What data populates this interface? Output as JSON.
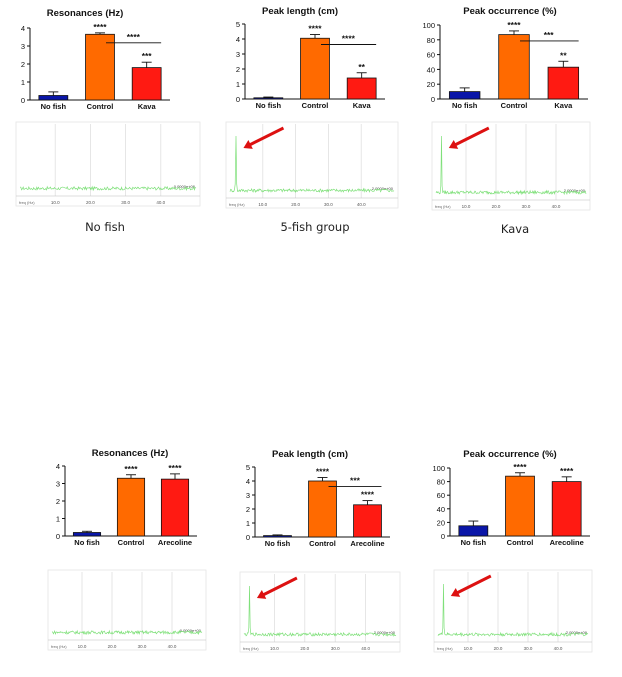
{
  "colors": {
    "nofish": "#0a16a8",
    "control": "#ff6a00",
    "treatment": "#ff1a12",
    "spectrum": "#7fe07a",
    "arrow": "#dd1111"
  },
  "chart_data": [
    {
      "type": "bar",
      "title": "Resonances (Hz)",
      "categories": [
        "No fish",
        "Control",
        "Kava"
      ],
      "values": [
        0.25,
        3.65,
        1.8
      ],
      "errors": [
        0.2,
        0.08,
        0.3
      ],
      "ylim": [
        0,
        4
      ],
      "yticks": [
        "0",
        "1",
        "2",
        "3",
        "4"
      ],
      "stars_on_bars": [
        "",
        "****",
        "***"
      ],
      "bracket": {
        "from": 1,
        "to": 2,
        "label": "****"
      }
    },
    {
      "type": "bar",
      "title": "Peak length (cm)",
      "categories": [
        "No fish",
        "Control",
        "Kava"
      ],
      "values": [
        0.08,
        4.05,
        1.4
      ],
      "errors": [
        0.05,
        0.25,
        0.35
      ],
      "ylim": [
        0,
        5
      ],
      "yticks": [
        "0",
        "1",
        "2",
        "3",
        "4",
        "5"
      ],
      "stars_on_bars": [
        "",
        "****",
        "**"
      ],
      "bracket": {
        "from": 1,
        "to": 2,
        "label": "****"
      }
    },
    {
      "type": "bar",
      "title": "Peak occurrence (%)",
      "categories": [
        "No fish",
        "Control",
        "Kava"
      ],
      "values": [
        10,
        87,
        43
      ],
      "errors": [
        5,
        5,
        8
      ],
      "ylim": [
        0,
        100
      ],
      "yticks": [
        "0",
        "20",
        "40",
        "60",
        "80",
        "100"
      ],
      "stars_on_bars": [
        "",
        "****",
        "**"
      ],
      "bracket": {
        "from": 1,
        "to": 2,
        "label": "***"
      }
    },
    {
      "type": "bar",
      "title": "Resonances (Hz)",
      "categories": [
        "No fish",
        "Control",
        "Arecoline"
      ],
      "values": [
        0.2,
        3.3,
        3.25
      ],
      "errors": [
        0.07,
        0.2,
        0.3
      ],
      "ylim": [
        0,
        4
      ],
      "yticks": [
        "0",
        "1",
        "2",
        "3",
        "4"
      ],
      "stars_on_bars": [
        "",
        "****",
        "****"
      ],
      "bracket": null
    },
    {
      "type": "bar",
      "title": "Peak length (cm)",
      "categories": [
        "No fish",
        "Control",
        "Arecoline"
      ],
      "values": [
        0.1,
        4.0,
        2.3
      ],
      "errors": [
        0.05,
        0.25,
        0.3
      ],
      "ylim": [
        0,
        5
      ],
      "yticks": [
        "0",
        "1",
        "2",
        "3",
        "4",
        "5"
      ],
      "stars_on_bars": [
        "",
        "****",
        "****"
      ],
      "bracket": {
        "from": 1,
        "to": 2,
        "label": "***"
      }
    },
    {
      "type": "bar",
      "title": "Peak occurrence (%)",
      "categories": [
        "No fish",
        "Control",
        "Arecoline"
      ],
      "values": [
        15,
        88,
        80
      ],
      "errors": [
        7,
        5,
        7
      ],
      "ylim": [
        0,
        100
      ],
      "yticks": [
        "0",
        "20",
        "40",
        "60",
        "80",
        "100"
      ],
      "stars_on_bars": [
        "",
        "****",
        "****"
      ],
      "bracket": null
    }
  ],
  "spectra": [
    {
      "xticks": [
        "10.0",
        "20.0",
        "30.0",
        "40.0"
      ],
      "xlabel": "freq (Hz)",
      "value_label": "0.0000e+00",
      "caption": "No fish",
      "spike": false,
      "arrow": false
    },
    {
      "xticks": [
        "10.0",
        "20.0",
        "30.0",
        "40.0"
      ],
      "xlabel": "freq (Hz)",
      "value_label": "2.0000e+00",
      "caption": "5-fish group",
      "spike": true,
      "arrow": true
    },
    {
      "xticks": [
        "10.0",
        "20.0",
        "30.0",
        "40.0"
      ],
      "xlabel": "freq (Hz)",
      "value_label": "2.0000e+00",
      "caption": "Kava",
      "spike": true,
      "arrow": true
    },
    {
      "xticks": [
        "10.0",
        "20.0",
        "30.0",
        "40.0"
      ],
      "xlabel": "freq (Hz)",
      "value_label": "0.0000e+00",
      "caption": "",
      "spike": false,
      "arrow": false
    },
    {
      "xticks": [
        "10.0",
        "20.0",
        "30.0",
        "40.0"
      ],
      "xlabel": "freq (Hz)",
      "value_label": "2.0000e+00",
      "caption": "",
      "spike": true,
      "arrow": true
    },
    {
      "xticks": [
        "10.0",
        "20.0",
        "30.0",
        "40.0"
      ],
      "xlabel": "freq (Hz)",
      "value_label": "2.0000e+00",
      "caption": "",
      "spike": true,
      "arrow": true
    }
  ]
}
